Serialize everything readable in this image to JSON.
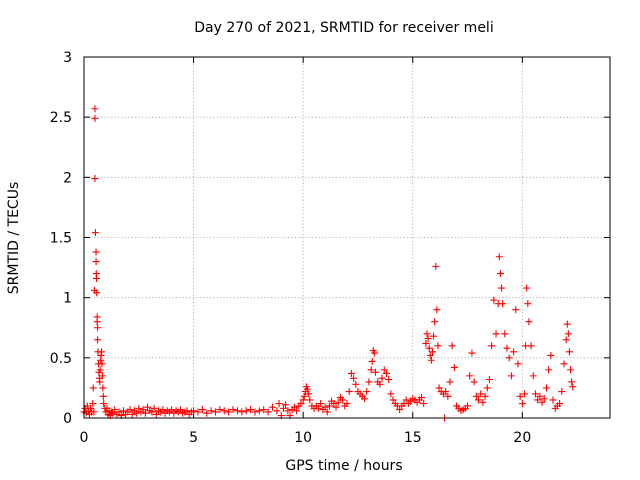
{
  "chart_data": {
    "type": "scatter",
    "title": "Day 270 of 2021, SRMTID for receiver meli",
    "xlabel": "GPS time / hours",
    "ylabel": "SRMTID / TECUs",
    "xlim": [
      0,
      24
    ],
    "ylim": [
      0,
      3
    ],
    "xticks": [
      0,
      5,
      10,
      15,
      20
    ],
    "xtick_labels": [
      "0",
      "5",
      "10",
      "15",
      "20"
    ],
    "yticks": [
      0,
      0.5,
      1,
      1.5,
      2,
      2.5,
      3
    ],
    "ytick_labels": [
      "0",
      "0.5",
      "1",
      "1.5",
      "2",
      "2.5",
      "3"
    ],
    "grid": true,
    "marker": "+",
    "color": "#ff0000",
    "series": [
      {
        "name": "SRMTID",
        "points": [
          [
            0.0,
            0.05
          ],
          [
            0.05,
            0.08
          ],
          [
            0.1,
            0.04
          ],
          [
            0.15,
            0.1
          ],
          [
            0.2,
            0.06
          ],
          [
            0.25,
            0.03
          ],
          [
            0.3,
            0.08
          ],
          [
            0.35,
            0.05
          ],
          [
            0.4,
            0.12
          ],
          [
            0.42,
            0.25
          ],
          [
            0.45,
            0.05
          ],
          [
            0.48,
            1.06
          ],
          [
            0.5,
            2.57
          ],
          [
            0.5,
            2.49
          ],
          [
            0.5,
            1.99
          ],
          [
            0.52,
            1.54
          ],
          [
            0.55,
            1.38
          ],
          [
            0.55,
            1.3
          ],
          [
            0.56,
            1.2
          ],
          [
            0.57,
            1.16
          ],
          [
            0.58,
            1.04
          ],
          [
            0.6,
            0.84
          ],
          [
            0.6,
            0.8
          ],
          [
            0.62,
            0.75
          ],
          [
            0.62,
            0.65
          ],
          [
            0.64,
            0.55
          ],
          [
            0.66,
            0.45
          ],
          [
            0.68,
            0.38
          ],
          [
            0.7,
            0.33
          ],
          [
            0.72,
            0.3
          ],
          [
            0.74,
            0.4
          ],
          [
            0.76,
            0.48
          ],
          [
            0.78,
            0.52
          ],
          [
            0.8,
            0.55
          ],
          [
            0.82,
            0.45
          ],
          [
            0.84,
            0.35
          ],
          [
            0.86,
            0.25
          ],
          [
            0.88,
            0.18
          ],
          [
            0.9,
            0.12
          ],
          [
            0.95,
            0.08
          ],
          [
            1.0,
            0.05
          ],
          [
            1.05,
            0.08
          ],
          [
            1.1,
            0.03
          ],
          [
            1.15,
            0.06
          ],
          [
            1.2,
            0.02
          ],
          [
            1.25,
            0.05
          ],
          [
            1.3,
            0.04
          ],
          [
            1.4,
            0.07
          ],
          [
            1.5,
            0.03
          ],
          [
            1.6,
            0.05
          ],
          [
            1.7,
            0.02
          ],
          [
            1.8,
            0.06
          ],
          [
            1.9,
            0.03
          ],
          [
            2.0,
            0.05
          ],
          [
            2.1,
            0.07
          ],
          [
            2.2,
            0.03
          ],
          [
            2.3,
            0.06
          ],
          [
            2.4,
            0.04
          ],
          [
            2.5,
            0.08
          ],
          [
            2.6,
            0.05
          ],
          [
            2.7,
            0.07
          ],
          [
            2.8,
            0.04
          ],
          [
            2.9,
            0.09
          ],
          [
            3.0,
            0.06
          ],
          [
            3.1,
            0.05
          ],
          [
            3.2,
            0.08
          ],
          [
            3.3,
            0.03
          ],
          [
            3.4,
            0.06
          ],
          [
            3.5,
            0.05
          ],
          [
            3.6,
            0.07
          ],
          [
            3.7,
            0.04
          ],
          [
            3.8,
            0.06
          ],
          [
            3.9,
            0.05
          ],
          [
            4.0,
            0.07
          ],
          [
            4.1,
            0.04
          ],
          [
            4.2,
            0.06
          ],
          [
            4.3,
            0.05
          ],
          [
            4.4,
            0.07
          ],
          [
            4.5,
            0.04
          ],
          [
            4.6,
            0.05
          ],
          [
            4.7,
            0.06
          ],
          [
            4.8,
            0.03
          ],
          [
            4.9,
            0.05
          ],
          [
            5.0,
            0.06
          ],
          [
            5.2,
            0.05
          ],
          [
            5.4,
            0.07
          ],
          [
            5.6,
            0.04
          ],
          [
            5.8,
            0.06
          ],
          [
            6.0,
            0.05
          ],
          [
            6.2,
            0.07
          ],
          [
            6.4,
            0.06
          ],
          [
            6.6,
            0.05
          ],
          [
            6.8,
            0.07
          ],
          [
            7.0,
            0.06
          ],
          [
            7.2,
            0.05
          ],
          [
            7.4,
            0.06
          ],
          [
            7.6,
            0.07
          ],
          [
            7.8,
            0.05
          ],
          [
            8.0,
            0.06
          ],
          [
            8.2,
            0.07
          ],
          [
            8.4,
            0.05
          ],
          [
            8.6,
            0.09
          ],
          [
            8.8,
            0.06
          ],
          [
            8.9,
            0.12
          ],
          [
            9.0,
            0.02
          ],
          [
            9.1,
            0.08
          ],
          [
            9.2,
            0.11
          ],
          [
            9.3,
            0.06
          ],
          [
            9.4,
            0.02
          ],
          [
            9.5,
            0.07
          ],
          [
            9.6,
            0.09
          ],
          [
            9.7,
            0.06
          ],
          [
            9.8,
            0.1
          ],
          [
            9.9,
            0.12
          ],
          [
            10.0,
            0.15
          ],
          [
            10.05,
            0.18
          ],
          [
            10.1,
            0.22
          ],
          [
            10.15,
            0.26
          ],
          [
            10.2,
            0.24
          ],
          [
            10.25,
            0.2
          ],
          [
            10.3,
            0.15
          ],
          [
            10.4,
            0.1
          ],
          [
            10.5,
            0.08
          ],
          [
            10.6,
            0.1
          ],
          [
            10.7,
            0.08
          ],
          [
            10.8,
            0.12
          ],
          [
            10.9,
            0.07
          ],
          [
            11.0,
            0.09
          ],
          [
            11.1,
            0.05
          ],
          [
            11.2,
            0.1
          ],
          [
            11.3,
            0.14
          ],
          [
            11.4,
            0.12
          ],
          [
            11.5,
            0.09
          ],
          [
            11.6,
            0.13
          ],
          [
            11.7,
            0.17
          ],
          [
            11.8,
            0.15
          ],
          [
            11.9,
            0.1
          ],
          [
            12.0,
            0.12
          ],
          [
            12.1,
            0.22
          ],
          [
            12.2,
            0.37
          ],
          [
            12.3,
            0.33
          ],
          [
            12.4,
            0.28
          ],
          [
            12.5,
            0.22
          ],
          [
            12.6,
            0.2
          ],
          [
            12.7,
            0.18
          ],
          [
            12.8,
            0.16
          ],
          [
            12.9,
            0.22
          ],
          [
            13.0,
            0.3
          ],
          [
            13.1,
            0.4
          ],
          [
            13.15,
            0.47
          ],
          [
            13.2,
            0.56
          ],
          [
            13.25,
            0.54
          ],
          [
            13.3,
            0.38
          ],
          [
            13.4,
            0.3
          ],
          [
            13.5,
            0.28
          ],
          [
            13.6,
            0.33
          ],
          [
            13.7,
            0.4
          ],
          [
            13.8,
            0.37
          ],
          [
            13.9,
            0.32
          ],
          [
            14.0,
            0.2
          ],
          [
            14.1,
            0.15
          ],
          [
            14.2,
            0.12
          ],
          [
            14.3,
            0.1
          ],
          [
            14.4,
            0.07
          ],
          [
            14.5,
            0.1
          ],
          [
            14.6,
            0.12
          ],
          [
            14.7,
            0.15
          ],
          [
            14.8,
            0.12
          ],
          [
            14.9,
            0.14
          ],
          [
            15.0,
            0.16
          ],
          [
            15.1,
            0.15
          ],
          [
            15.2,
            0.13
          ],
          [
            15.3,
            0.15
          ],
          [
            15.4,
            0.17
          ],
          [
            15.5,
            0.12
          ],
          [
            15.6,
            0.62
          ],
          [
            15.65,
            0.7
          ],
          [
            15.7,
            0.66
          ],
          [
            15.75,
            0.58
          ],
          [
            15.8,
            0.52
          ],
          [
            15.85,
            0.48
          ],
          [
            15.9,
            0.55
          ],
          [
            15.95,
            0.68
          ],
          [
            16.0,
            0.8
          ],
          [
            16.05,
            1.26
          ],
          [
            16.1,
            0.9
          ],
          [
            16.15,
            0.6
          ],
          [
            16.2,
            0.25
          ],
          [
            16.3,
            0.22
          ],
          [
            16.4,
            0.2
          ],
          [
            16.45,
            0.0
          ],
          [
            16.5,
            0.22
          ],
          [
            16.6,
            0.18
          ],
          [
            16.7,
            0.3
          ],
          [
            16.8,
            0.6
          ],
          [
            16.9,
            0.42
          ],
          [
            17.0,
            0.1
          ],
          [
            17.1,
            0.08
          ],
          [
            17.2,
            0.06
          ],
          [
            17.3,
            0.07
          ],
          [
            17.4,
            0.08
          ],
          [
            17.5,
            0.1
          ],
          [
            17.6,
            0.35
          ],
          [
            17.7,
            0.54
          ],
          [
            17.8,
            0.3
          ],
          [
            17.9,
            0.18
          ],
          [
            18.0,
            0.15
          ],
          [
            18.1,
            0.2
          ],
          [
            18.2,
            0.13
          ],
          [
            18.3,
            0.18
          ],
          [
            18.4,
            0.25
          ],
          [
            18.5,
            0.32
          ],
          [
            18.6,
            0.6
          ],
          [
            18.7,
            0.98
          ],
          [
            18.8,
            0.7
          ],
          [
            18.9,
            0.95
          ],
          [
            18.95,
            1.34
          ],
          [
            19.0,
            1.2
          ],
          [
            19.05,
            1.08
          ],
          [
            19.1,
            0.95
          ],
          [
            19.2,
            0.7
          ],
          [
            19.3,
            0.58
          ],
          [
            19.4,
            0.5
          ],
          [
            19.5,
            0.35
          ],
          [
            19.6,
            0.55
          ],
          [
            19.7,
            0.9
          ],
          [
            19.8,
            0.45
          ],
          [
            19.9,
            0.18
          ],
          [
            20.0,
            0.12
          ],
          [
            20.1,
            0.2
          ],
          [
            20.15,
            0.6
          ],
          [
            20.2,
            1.08
          ],
          [
            20.25,
            0.95
          ],
          [
            20.3,
            0.8
          ],
          [
            20.4,
            0.6
          ],
          [
            20.5,
            0.35
          ],
          [
            20.6,
            0.2
          ],
          [
            20.7,
            0.15
          ],
          [
            20.8,
            0.18
          ],
          [
            20.9,
            0.13
          ],
          [
            21.0,
            0.16
          ],
          [
            21.1,
            0.25
          ],
          [
            21.2,
            0.4
          ],
          [
            21.3,
            0.52
          ],
          [
            21.4,
            0.15
          ],
          [
            21.5,
            0.08
          ],
          [
            21.6,
            0.1
          ],
          [
            21.7,
            0.12
          ],
          [
            21.8,
            0.22
          ],
          [
            21.9,
            0.45
          ],
          [
            22.0,
            0.65
          ],
          [
            22.05,
            0.78
          ],
          [
            22.1,
            0.7
          ],
          [
            22.15,
            0.55
          ],
          [
            22.2,
            0.4
          ],
          [
            22.25,
            0.3
          ],
          [
            22.3,
            0.26
          ]
        ]
      }
    ]
  }
}
